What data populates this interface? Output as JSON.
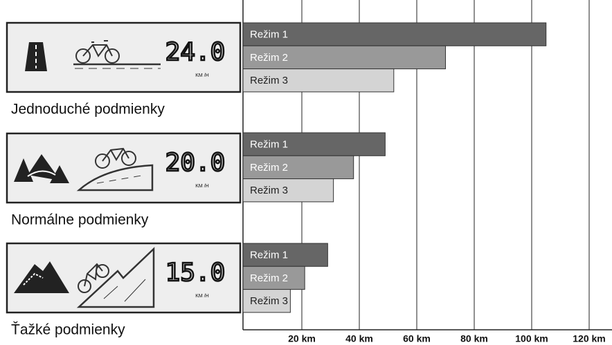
{
  "chart_data": {
    "type": "bar",
    "orientation": "horizontal",
    "xlim": [
      0,
      120
    ],
    "xticks": [
      {
        "value": 20,
        "label": "20 km"
      },
      {
        "value": 40,
        "label": "40 km"
      },
      {
        "value": 60,
        "label": "60 km"
      },
      {
        "value": 80,
        "label": "80 km"
      },
      {
        "value": 100,
        "label": "100 km"
      },
      {
        "value": 120,
        "label": "120 km"
      }
    ],
    "grid": true,
    "colors": [
      "#666666",
      "#999999",
      "#d4d4d4"
    ],
    "groups": [
      {
        "label": "Jednoduché podmienky",
        "speed": "24.0",
        "speed_unit": "KM /H",
        "categories": [
          "Režim 1",
          "Režim 2",
          "Režim 3"
        ],
        "values": [
          105,
          70,
          52
        ]
      },
      {
        "label": "Normálne podmienky",
        "speed": "20.0",
        "speed_unit": "KM /H",
        "categories": [
          "Režim 1",
          "Režim 2",
          "Režim 3"
        ],
        "values": [
          49,
          38,
          31
        ]
      },
      {
        "label": "Ťažké podmienky",
        "speed": "15.0",
        "speed_unit": "KM /H",
        "categories": [
          "Režim 1",
          "Režim 2",
          "Režim 3"
        ],
        "values": [
          29,
          21,
          16
        ]
      }
    ]
  }
}
